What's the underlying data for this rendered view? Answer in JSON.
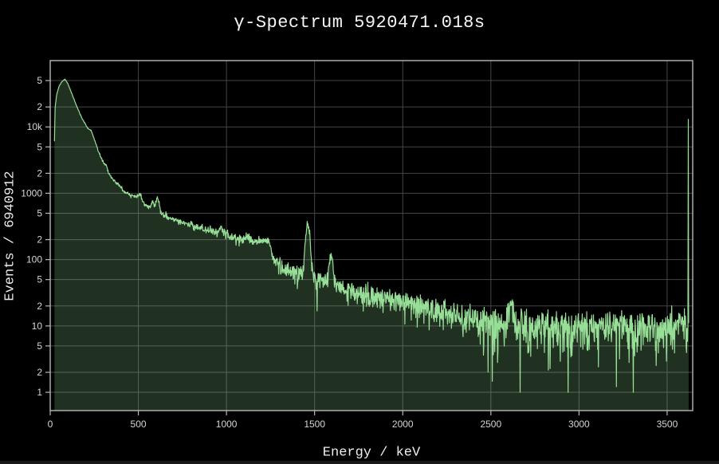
{
  "page": {
    "background": "#000000"
  },
  "chart_data": {
    "type": "area",
    "title": "γ-Spectrum 5920471.018s",
    "xlabel": "Energy / keV",
    "ylabel": "Events / 6940912",
    "live_time_s": 5920471.018,
    "total_events": 6940912,
    "x_range": [
      0,
      3645
    ],
    "y_range": [
      0.53,
      100000
    ],
    "y_scale": "log",
    "grid": true,
    "x_ticks": [
      0,
      500,
      1000,
      1500,
      2000,
      2500,
      3000,
      3500
    ],
    "y_ticks": [
      {
        "v": 1,
        "label": "1"
      },
      {
        "v": 2,
        "label": "2"
      },
      {
        "v": 5,
        "label": "5"
      },
      {
        "v": 10,
        "label": "10"
      },
      {
        "v": 20,
        "label": "2"
      },
      {
        "v": 50,
        "label": "5"
      },
      {
        "v": 100,
        "label": "100"
      },
      {
        "v": 200,
        "label": "2"
      },
      {
        "v": 500,
        "label": "5"
      },
      {
        "v": 1000,
        "label": "1000"
      },
      {
        "v": 2000,
        "label": "2"
      },
      {
        "v": 5000,
        "label": "5"
      },
      {
        "v": 10000,
        "label": "10k"
      },
      {
        "v": 20000,
        "label": "2"
      },
      {
        "v": 50000,
        "label": "5"
      }
    ],
    "colors": {
      "background": "#000000",
      "line": "#97de97",
      "fill_rgba": [
        151,
        222,
        151,
        0.22
      ],
      "grid": "#454545",
      "frame": "#b8b8b8",
      "tick_text": "#d4d4d4",
      "title_text": "#f5f5f5"
    },
    "data_start_keV": 24,
    "data_end_keV": 3622,
    "bin_width_keV": 2,
    "envelope": [
      [
        24,
        6000
      ],
      [
        28,
        20000
      ],
      [
        36,
        30000
      ],
      [
        50,
        41000
      ],
      [
        65,
        48000
      ],
      [
        84,
        52500
      ],
      [
        100,
        45000
      ],
      [
        125,
        30500
      ],
      [
        152,
        20000
      ],
      [
        180,
        13500
      ],
      [
        212,
        9600
      ],
      [
        232,
        8900
      ],
      [
        252,
        6300
      ],
      [
        268,
        4700
      ],
      [
        288,
        3500
      ],
      [
        302,
        2950
      ],
      [
        318,
        2600
      ],
      [
        334,
        2000
      ],
      [
        352,
        1620
      ],
      [
        375,
        1430
      ],
      [
        395,
        1300
      ],
      [
        420,
        1070
      ],
      [
        442,
        950
      ],
      [
        470,
        900
      ],
      [
        505,
        850
      ],
      [
        535,
        690
      ],
      [
        565,
        620
      ],
      [
        595,
        545
      ],
      [
        635,
        480
      ],
      [
        685,
        415
      ],
      [
        735,
        375
      ],
      [
        795,
        335
      ],
      [
        855,
        300
      ],
      [
        920,
        268
      ],
      [
        990,
        238
      ],
      [
        1060,
        208
      ],
      [
        1120,
        193
      ],
      [
        1175,
        188
      ],
      [
        1215,
        192
      ],
      [
        1243,
        148
      ],
      [
        1268,
        105
      ],
      [
        1295,
        82
      ],
      [
        1335,
        70
      ],
      [
        1385,
        64
      ],
      [
        1435,
        59
      ],
      [
        1475,
        54
      ],
      [
        1525,
        48
      ],
      [
        1575,
        44
      ],
      [
        1625,
        39
      ],
      [
        1685,
        34
      ],
      [
        1755,
        30.5
      ],
      [
        1855,
        27.5
      ],
      [
        1955,
        24.5
      ],
      [
        2055,
        21
      ],
      [
        2155,
        18
      ],
      [
        2255,
        15
      ],
      [
        2355,
        12.5
      ],
      [
        2455,
        11
      ],
      [
        2555,
        10.3
      ],
      [
        2655,
        10
      ],
      [
        2755,
        9.5
      ],
      [
        2905,
        9.2
      ],
      [
        3105,
        9.2
      ],
      [
        3305,
        9.4
      ],
      [
        3505,
        9.7
      ],
      [
        3622,
        10
      ]
    ],
    "peaks": [
      {
        "center_keV": 511,
        "sigma_keV": 8,
        "amplitude": 150
      },
      {
        "center_keV": 583,
        "sigma_keV": 8,
        "amplitude": 130
      },
      {
        "center_keV": 609,
        "sigma_keV": 9,
        "amplitude": 320
      },
      {
        "center_keV": 969,
        "sigma_keV": 10,
        "amplitude": 50
      },
      {
        "center_keV": 1120,
        "sigma_keV": 10,
        "amplitude": 28
      },
      {
        "center_keV": 1238,
        "sigma_keV": 10,
        "amplitude": 45
      },
      {
        "center_keV": 1461,
        "sigma_keV": 11,
        "amplitude": 280
      },
      {
        "center_keV": 1592,
        "sigma_keV": 9,
        "amplitude": 78
      },
      {
        "center_keV": 2614,
        "sigma_keV": 11,
        "amplitude": 13
      }
    ],
    "overflow_bin": {
      "energy_keV": 3620,
      "events": 13000
    }
  }
}
